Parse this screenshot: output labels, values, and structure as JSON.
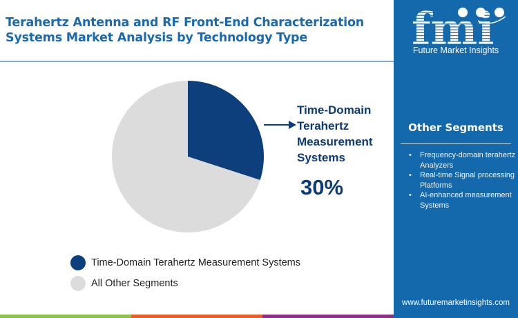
{
  "header": {
    "title": "Terahertz Antenna and RF Front-End Characterization Systems Market Analysis by Technology Type"
  },
  "chart_data": {
    "type": "pie",
    "title": "Terahertz Antenna and RF Front-End Characterization Systems Market Analysis by Technology Type",
    "categories": [
      "Time-Domain Terahertz Measurement Systems",
      "All Other Segments"
    ],
    "values": [
      30,
      70
    ],
    "colors": [
      "#0c3f7c",
      "#dcdcdc"
    ],
    "start_angle_deg": 0,
    "direction": "clockwise",
    "annotation": {
      "label": "Time-Domain Terahertz Measurement Systems",
      "value": "30%"
    },
    "legend_position": "bottom-left"
  },
  "callout": {
    "label_lines": [
      "Time-Domain",
      "Terahertz",
      "Measurement",
      "Systems"
    ],
    "value": "30%"
  },
  "legend": {
    "items": [
      {
        "label": "Time-Domain Terahertz Measurement Systems",
        "color": "#0c3f7c"
      },
      {
        "label": "All Other Segments",
        "color": "#dcdcdc"
      }
    ]
  },
  "color_bar": [
    {
      "color": "#8dc04a",
      "width": 190
    },
    {
      "color": "#e65f2b",
      "width": 190
    },
    {
      "color": "#8c2f86",
      "width": 190
    }
  ],
  "sidebar": {
    "logo_text": "fmi",
    "logo_subtitle": "Future Market Insights",
    "other_segments_title": "Other Segments",
    "other_segments": [
      "Frequency-domain terahertz Analyzers",
      "Real-time Signal processing Platforms",
      "AI-enhanced measurement Systems"
    ],
    "website": "www.futuremarketinsights.com",
    "background": "#1469ad"
  }
}
